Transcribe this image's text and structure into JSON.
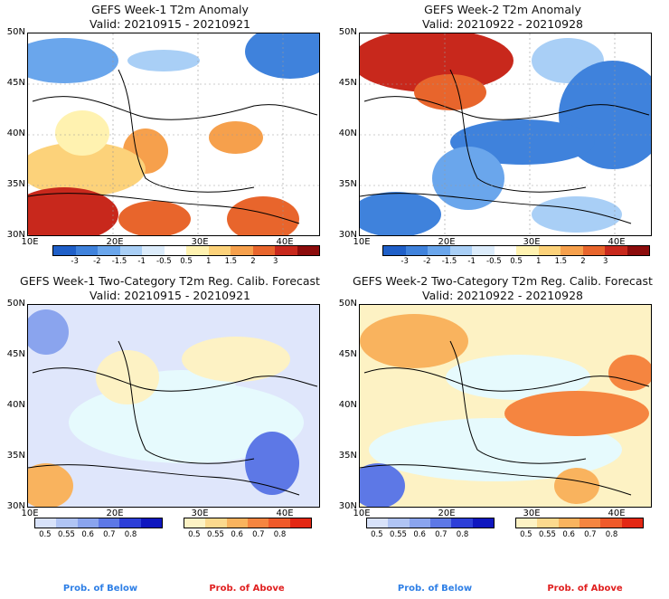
{
  "panels": [
    {
      "title": "GEFS Week-1 T2m Anomaly",
      "valid": "Valid: 20210915 - 20210921"
    },
    {
      "title": "GEFS Week-2 T2m Anomaly",
      "valid": "Valid: 20210922 - 20210928"
    },
    {
      "title": "GEFS Week-1 Two-Category T2m Reg. Calib. Forecast",
      "valid": "Valid: 20210915 - 20210921"
    },
    {
      "title": "GEFS Week-2 Two-Category T2m Reg. Calib. Forecast",
      "valid": "Valid: 20210922 - 20210928"
    }
  ],
  "lat_labels": [
    "50N",
    "45N",
    "40N",
    "35N",
    "30N"
  ],
  "lon_labels": [
    "10E",
    "20E",
    "30E",
    "40E"
  ],
  "anomaly_colorbar": {
    "labels": [
      "-3",
      "-2",
      "-1.5",
      "-1",
      "-0.5",
      "0.5",
      "1",
      "1.5",
      "2",
      "3"
    ],
    "colors": [
      "#1f5fc8",
      "#3f82dc",
      "#6aa6ec",
      "#a9cff6",
      "#dcecfb",
      "#ffffff",
      "#fff2b0",
      "#fcd27a",
      "#f6a04c",
      "#e8652c",
      "#c8281c",
      "#8c0c0c"
    ]
  },
  "prob_below_colorbar": {
    "labels": [
      "0.5",
      "0.55",
      "0.6",
      "0.7",
      "0.8"
    ],
    "colors": [
      "#d8e2fa",
      "#b0c4f4",
      "#8aa4ee",
      "#5d78e6",
      "#2d3fd8",
      "#0f17bf"
    ]
  },
  "prob_above_colorbar": {
    "labels": [
      "0.5",
      "0.55",
      "0.6",
      "0.7",
      "0.8"
    ],
    "colors": [
      "#fdf2c4",
      "#fcd98e",
      "#f9b35e",
      "#f58540",
      "#ef5a2a",
      "#e32814"
    ]
  },
  "legend": {
    "below": "Prob. of Below",
    "above": "Prob. of Above"
  },
  "colors": {
    "sea_fill": "#e6fafd",
    "below_text": "#2e7fe6",
    "above_text": "#e02020"
  }
}
